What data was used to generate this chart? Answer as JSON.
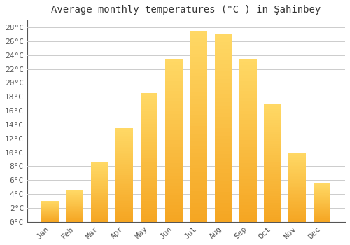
{
  "title": "Average monthly temperatures (°C ) in Şahinbey",
  "months": [
    "Jan",
    "Feb",
    "Mar",
    "Apr",
    "May",
    "Jun",
    "Jul",
    "Aug",
    "Sep",
    "Oct",
    "Nov",
    "Dec"
  ],
  "values": [
    3,
    4.5,
    8.5,
    13.5,
    18.5,
    23.5,
    27.5,
    27,
    23.5,
    17,
    10,
    5.5
  ],
  "bar_color_bottom": "#F5A623",
  "bar_color_top": "#FFD966",
  "ylim": [
    0,
    29
  ],
  "yticks": [
    0,
    2,
    4,
    6,
    8,
    10,
    12,
    14,
    16,
    18,
    20,
    22,
    24,
    26,
    28
  ],
  "ytick_labels": [
    "0°C",
    "2°C",
    "4°C",
    "6°C",
    "8°C",
    "10°C",
    "12°C",
    "14°C",
    "16°C",
    "18°C",
    "20°C",
    "22°C",
    "24°C",
    "26°C",
    "28°C"
  ],
  "bg_color": "#ffffff",
  "grid_color": "#cccccc",
  "font_family": "monospace",
  "title_fontsize": 10,
  "tick_fontsize": 8
}
